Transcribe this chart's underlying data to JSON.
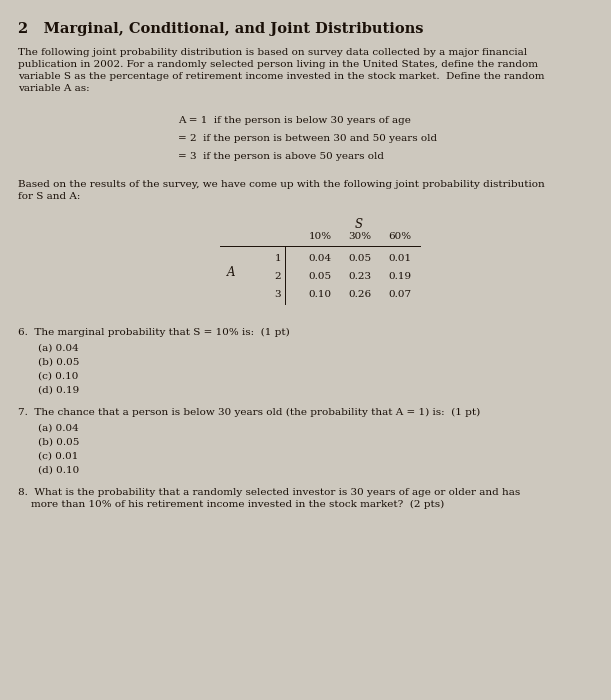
{
  "title": "2   Marginal, Conditional, and Joint Distributions",
  "bg_color": "#cdc8be",
  "text_color": "#1a1008",
  "intro_text": "The following joint probability distribution is based on survey data collected by a major financial\npublication in 2002. For a randomly selected person living in the United States, define the random\nvariable S as the percentage of retirement income invested in the stock market.  Define the random\nvariable A as:",
  "definitions": [
    "A = 1  if the person is below 30 years of age",
    "= 2  if the person is between 30 and 50 years old",
    "= 3  if the person is above 50 years old"
  ],
  "survey_text": "Based on the results of the survey, we have come up with the following joint probability distribution\nfor S and A:",
  "table_header_S": "S",
  "table_col_labels": [
    "10%",
    "30%",
    "60%"
  ],
  "table_row_label": "A",
  "table_rows": [
    [
      "1",
      "0.04",
      "0.05",
      "0.01"
    ],
    [
      "2",
      "0.05",
      "0.23",
      "0.19"
    ],
    [
      "3",
      "0.10",
      "0.26",
      "0.07"
    ]
  ],
  "q6_text": "6.  The marginal probability that S = 10% is:  (1 pt)",
  "q6_options": [
    "(a) 0.04",
    "(b) 0.05",
    "(c) 0.10",
    "(d) 0.19"
  ],
  "q7_text": "7.  The chance that a person is below 30 years old (the probability that A = 1) is:  (1 pt)",
  "q7_options": [
    "(a) 0.04",
    "(b) 0.05",
    "(c) 0.01",
    "(d) 0.10"
  ],
  "q8_text": "8.  What is the probability that a randomly selected investor is 30 years of age or older and has\n    more than 10% of his retirement income invested in the stock market?  (2 pts)",
  "title_fontsize": 10.5,
  "body_fontsize": 7.5,
  "option_indent": 0.1,
  "def_indent": 0.3
}
